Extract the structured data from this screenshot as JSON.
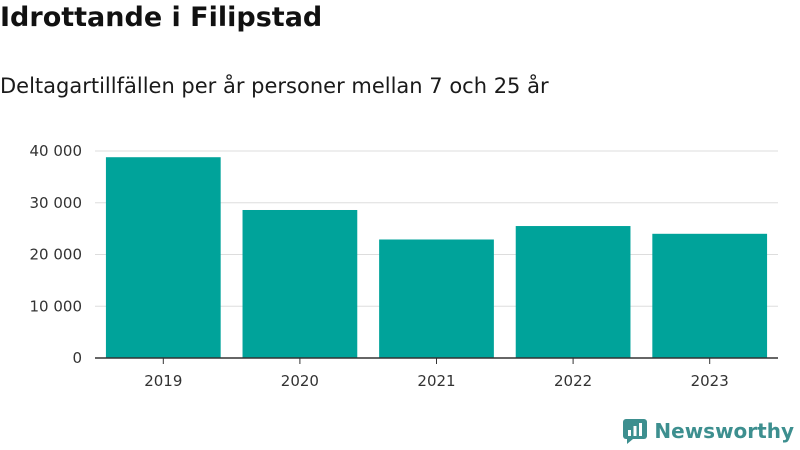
{
  "colors": {
    "bar": "#00a39a",
    "grid": "#dddddd",
    "axis": "#333333",
    "brand": "#3d8f8f"
  },
  "brand": {
    "name": "Newsworthy",
    "icon": "newsworthy-logo-icon"
  },
  "chart_data": {
    "type": "bar",
    "title": "Idrottande i Filipstad",
    "subtitle": "Deltagartillfällen per år personer mellan 7 och 25 år",
    "categories": [
      "2019",
      "2020",
      "2021",
      "2022",
      "2023"
    ],
    "values": [
      38800,
      28600,
      22900,
      25500,
      24000
    ],
    "ylim": [
      0,
      40000
    ],
    "yticks": [
      0,
      10000,
      20000,
      30000,
      40000
    ],
    "ytick_labels": [
      "0",
      "10 000",
      "20 000",
      "30 000",
      "40 000"
    ],
    "grid": true,
    "xlabel": "",
    "ylabel": ""
  }
}
